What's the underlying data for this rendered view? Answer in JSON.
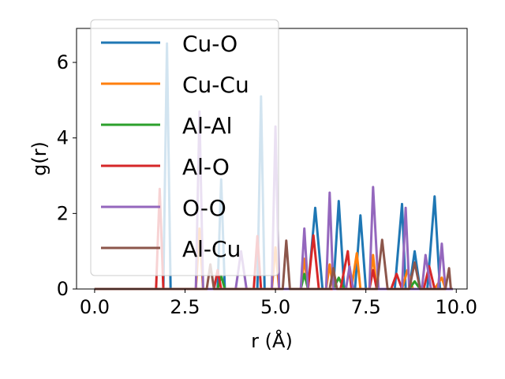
{
  "chart_data": {
    "type": "line",
    "xlabel": "r (Å)",
    "ylabel": "g(r)",
    "xlim": [
      -0.5,
      10.3
    ],
    "ylim": [
      0,
      6.9
    ],
    "xticks": [
      0.0,
      2.5,
      5.0,
      7.5,
      10.0
    ],
    "xtick_labels": [
      "0.0",
      "2.5",
      "5.0",
      "7.5",
      "10.0"
    ],
    "yticks": [
      0,
      2,
      4,
      6
    ],
    "ytick_labels": [
      "0",
      "2",
      "4",
      "6"
    ],
    "grid": false,
    "legend_position": "top-left",
    "series": [
      {
        "name": "Cu-O",
        "color": "#1f77b4",
        "points": [
          [
            0,
            0
          ],
          [
            1.9,
            0
          ],
          [
            2.0,
            6.5
          ],
          [
            2.1,
            0
          ],
          [
            3.4,
            0
          ],
          [
            3.5,
            2.9
          ],
          [
            3.6,
            0
          ],
          [
            4.5,
            0
          ],
          [
            4.6,
            5.1
          ],
          [
            4.7,
            0
          ],
          [
            5.9,
            0
          ],
          [
            6.1,
            2.15
          ],
          [
            6.3,
            0
          ],
          [
            6.6,
            0
          ],
          [
            6.75,
            2.33
          ],
          [
            6.9,
            0
          ],
          [
            7.2,
            0
          ],
          [
            7.35,
            1.95
          ],
          [
            7.5,
            0
          ],
          [
            8.3,
            0
          ],
          [
            8.5,
            2.25
          ],
          [
            8.6,
            0
          ],
          [
            8.7,
            0
          ],
          [
            8.85,
            1.0
          ],
          [
            9.0,
            0
          ],
          [
            9.2,
            0
          ],
          [
            9.4,
            2.45
          ],
          [
            9.55,
            0
          ],
          [
            9.9,
            0
          ]
        ]
      },
      {
        "name": "Cu-Cu",
        "color": "#ff7f0e",
        "points": [
          [
            0,
            0
          ],
          [
            2.8,
            0
          ],
          [
            2.9,
            1.6
          ],
          [
            3.0,
            0
          ],
          [
            4.9,
            0
          ],
          [
            5.0,
            1.1
          ],
          [
            5.1,
            0
          ],
          [
            5.7,
            0
          ],
          [
            5.8,
            0.8
          ],
          [
            5.9,
            0
          ],
          [
            6.4,
            0
          ],
          [
            6.5,
            0.65
          ],
          [
            6.6,
            0
          ],
          [
            7.1,
            0
          ],
          [
            7.25,
            0.95
          ],
          [
            7.35,
            0
          ],
          [
            7.6,
            0
          ],
          [
            7.7,
            0.9
          ],
          [
            7.8,
            0
          ],
          [
            8.5,
            0
          ],
          [
            8.65,
            0.5
          ],
          [
            8.8,
            0
          ],
          [
            9.4,
            0
          ],
          [
            9.6,
            0.3
          ],
          [
            9.7,
            0
          ],
          [
            9.9,
            0
          ]
        ]
      },
      {
        "name": "Al-Al",
        "color": "#2ca02c",
        "points": [
          [
            0,
            0
          ],
          [
            3.4,
            0
          ],
          [
            3.5,
            0.35
          ],
          [
            3.6,
            0
          ],
          [
            5.7,
            0
          ],
          [
            5.8,
            0.4
          ],
          [
            5.9,
            0
          ],
          [
            6.6,
            0
          ],
          [
            6.75,
            0.3
          ],
          [
            6.9,
            0
          ],
          [
            8.7,
            0
          ],
          [
            8.85,
            0.2
          ],
          [
            9.0,
            0
          ],
          [
            9.9,
            0
          ]
        ]
      },
      {
        "name": "Al-O",
        "color": "#d62728",
        "points": [
          [
            0,
            0
          ],
          [
            1.7,
            0
          ],
          [
            1.8,
            2.65
          ],
          [
            1.9,
            0
          ],
          [
            3.3,
            0
          ],
          [
            3.4,
            0.5
          ],
          [
            3.5,
            0
          ],
          [
            4.4,
            0
          ],
          [
            4.5,
            1.4
          ],
          [
            4.6,
            0
          ],
          [
            5.9,
            0
          ],
          [
            6.05,
            1.42
          ],
          [
            6.2,
            0
          ],
          [
            6.8,
            0
          ],
          [
            7.0,
            1.0
          ],
          [
            7.1,
            0
          ],
          [
            7.6,
            0
          ],
          [
            7.7,
            0.5
          ],
          [
            7.8,
            0
          ],
          [
            8.2,
            0
          ],
          [
            8.35,
            0.4
          ],
          [
            8.5,
            0
          ],
          [
            9.1,
            0
          ],
          [
            9.25,
            0.6
          ],
          [
            9.4,
            0
          ],
          [
            9.9,
            0
          ]
        ]
      },
      {
        "name": "O-O",
        "color": "#9467bd",
        "points": [
          [
            0,
            0
          ],
          [
            2.8,
            0
          ],
          [
            2.9,
            4.7
          ],
          [
            3.0,
            0
          ],
          [
            3.9,
            0
          ],
          [
            4.05,
            1.0
          ],
          [
            4.2,
            0
          ],
          [
            4.9,
            0
          ],
          [
            5.0,
            4.3
          ],
          [
            5.1,
            0
          ],
          [
            5.7,
            0
          ],
          [
            5.8,
            1.6
          ],
          [
            5.9,
            0
          ],
          [
            6.4,
            0
          ],
          [
            6.5,
            2.55
          ],
          [
            6.6,
            0
          ],
          [
            6.95,
            0
          ],
          [
            7.05,
            0.6
          ],
          [
            7.15,
            0
          ],
          [
            7.6,
            0
          ],
          [
            7.7,
            2.7
          ],
          [
            7.85,
            0
          ],
          [
            8.5,
            0
          ],
          [
            8.6,
            2.15
          ],
          [
            8.7,
            0
          ],
          [
            9.05,
            0
          ],
          [
            9.15,
            0.9
          ],
          [
            9.3,
            0
          ],
          [
            9.5,
            0
          ],
          [
            9.6,
            1.2
          ],
          [
            9.7,
            0
          ],
          [
            9.9,
            0
          ]
        ]
      },
      {
        "name": "Al-Cu",
        "color": "#8c564b",
        "points": [
          [
            0,
            0
          ],
          [
            3.1,
            0
          ],
          [
            3.2,
            0.65
          ],
          [
            3.3,
            0
          ],
          [
            5.2,
            0
          ],
          [
            5.3,
            1.28
          ],
          [
            5.4,
            0
          ],
          [
            6.5,
            0
          ],
          [
            6.6,
            0.55
          ],
          [
            6.7,
            0
          ],
          [
            7.8,
            0
          ],
          [
            7.95,
            1.3
          ],
          [
            8.1,
            0
          ],
          [
            8.7,
            0
          ],
          [
            8.85,
            0.7
          ],
          [
            9.0,
            0
          ],
          [
            9.7,
            0
          ],
          [
            9.8,
            0.55
          ],
          [
            9.85,
            0
          ]
        ]
      }
    ]
  }
}
